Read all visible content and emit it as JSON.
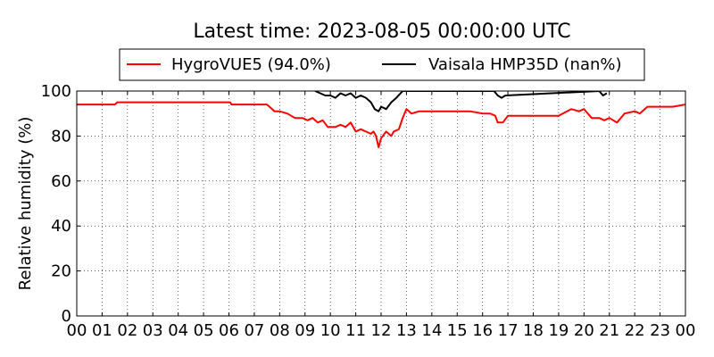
{
  "chart_data": {
    "type": "line",
    "title": "Latest time: 2023-08-05 00:00:00 UTC",
    "xlabel": "",
    "ylabel": "Relative humidity (%)",
    "xlim": [
      0,
      24
    ],
    "ylim": [
      0,
      100
    ],
    "grid": true,
    "legend_placement": "top",
    "x_ticks": [
      "00",
      "01",
      "02",
      "03",
      "04",
      "05",
      "06",
      "07",
      "08",
      "09",
      "10",
      "11",
      "12",
      "13",
      "14",
      "15",
      "16",
      "17",
      "18",
      "19",
      "20",
      "21",
      "22",
      "23",
      "00"
    ],
    "y_ticks": [
      "0",
      "20",
      "40",
      "60",
      "80",
      "100"
    ],
    "series": [
      {
        "name": "HygroVUE5 (94.0%)",
        "color": "#ff0000",
        "x": [
          0,
          1.5,
          1.6,
          2.5,
          3.5,
          4.5,
          5.5,
          6.05,
          6.1,
          7.5,
          7.6,
          7.8,
          8.0,
          8.3,
          8.6,
          8.9,
          9.1,
          9.3,
          9.5,
          9.7,
          9.9,
          10.05,
          10.2,
          10.4,
          10.6,
          10.8,
          11.0,
          11.2,
          11.4,
          11.6,
          11.7,
          11.8,
          11.9,
          12.0,
          12.2,
          12.4,
          12.5,
          12.7,
          12.85,
          13.0,
          13.2,
          13.5,
          14.0,
          14.5,
          15.0,
          15.5,
          16.0,
          16.3,
          16.5,
          16.6,
          16.8,
          17.0,
          17.2,
          17.5,
          18.0,
          18.5,
          19.0,
          19.5,
          19.8,
          20.0,
          20.3,
          20.6,
          20.8,
          21.0,
          21.3,
          21.6,
          22.0,
          22.2,
          22.5,
          23.0,
          23.5,
          24.0
        ],
        "y": [
          94,
          94,
          95,
          95,
          95,
          95,
          95,
          95,
          94,
          94,
          93,
          91,
          91,
          90,
          88,
          88,
          87,
          88,
          86,
          87,
          84,
          84,
          84,
          85,
          84,
          86,
          82,
          83,
          82,
          81,
          82,
          80,
          75,
          79,
          82,
          80,
          82,
          83,
          88,
          92,
          90,
          91,
          91,
          91,
          91,
          91,
          90,
          90,
          89,
          86,
          86,
          89,
          89,
          89,
          89,
          89,
          89,
          92,
          91,
          92,
          88,
          88,
          87,
          88,
          86,
          90,
          91,
          90,
          93,
          93,
          93,
          94
        ]
      },
      {
        "name": "Vaisala HMP35D (nan%)",
        "color": "#000000",
        "x": [
          9.4,
          9.6,
          9.8,
          10.0,
          10.2,
          10.4,
          10.6,
          10.8,
          11.0,
          11.2,
          11.4,
          11.6,
          11.75,
          11.9,
          12.0,
          12.2,
          12.4,
          12.6,
          12.85,
          16.45,
          16.6,
          16.75,
          16.9,
          20.6,
          20.75,
          20.9
        ],
        "y": [
          100,
          99,
          98,
          98,
          97,
          99,
          98,
          99,
          97,
          98,
          97,
          95,
          92,
          91,
          93,
          92,
          95,
          97,
          100,
          100,
          98,
          97,
          98,
          100,
          98,
          99
        ]
      }
    ]
  }
}
